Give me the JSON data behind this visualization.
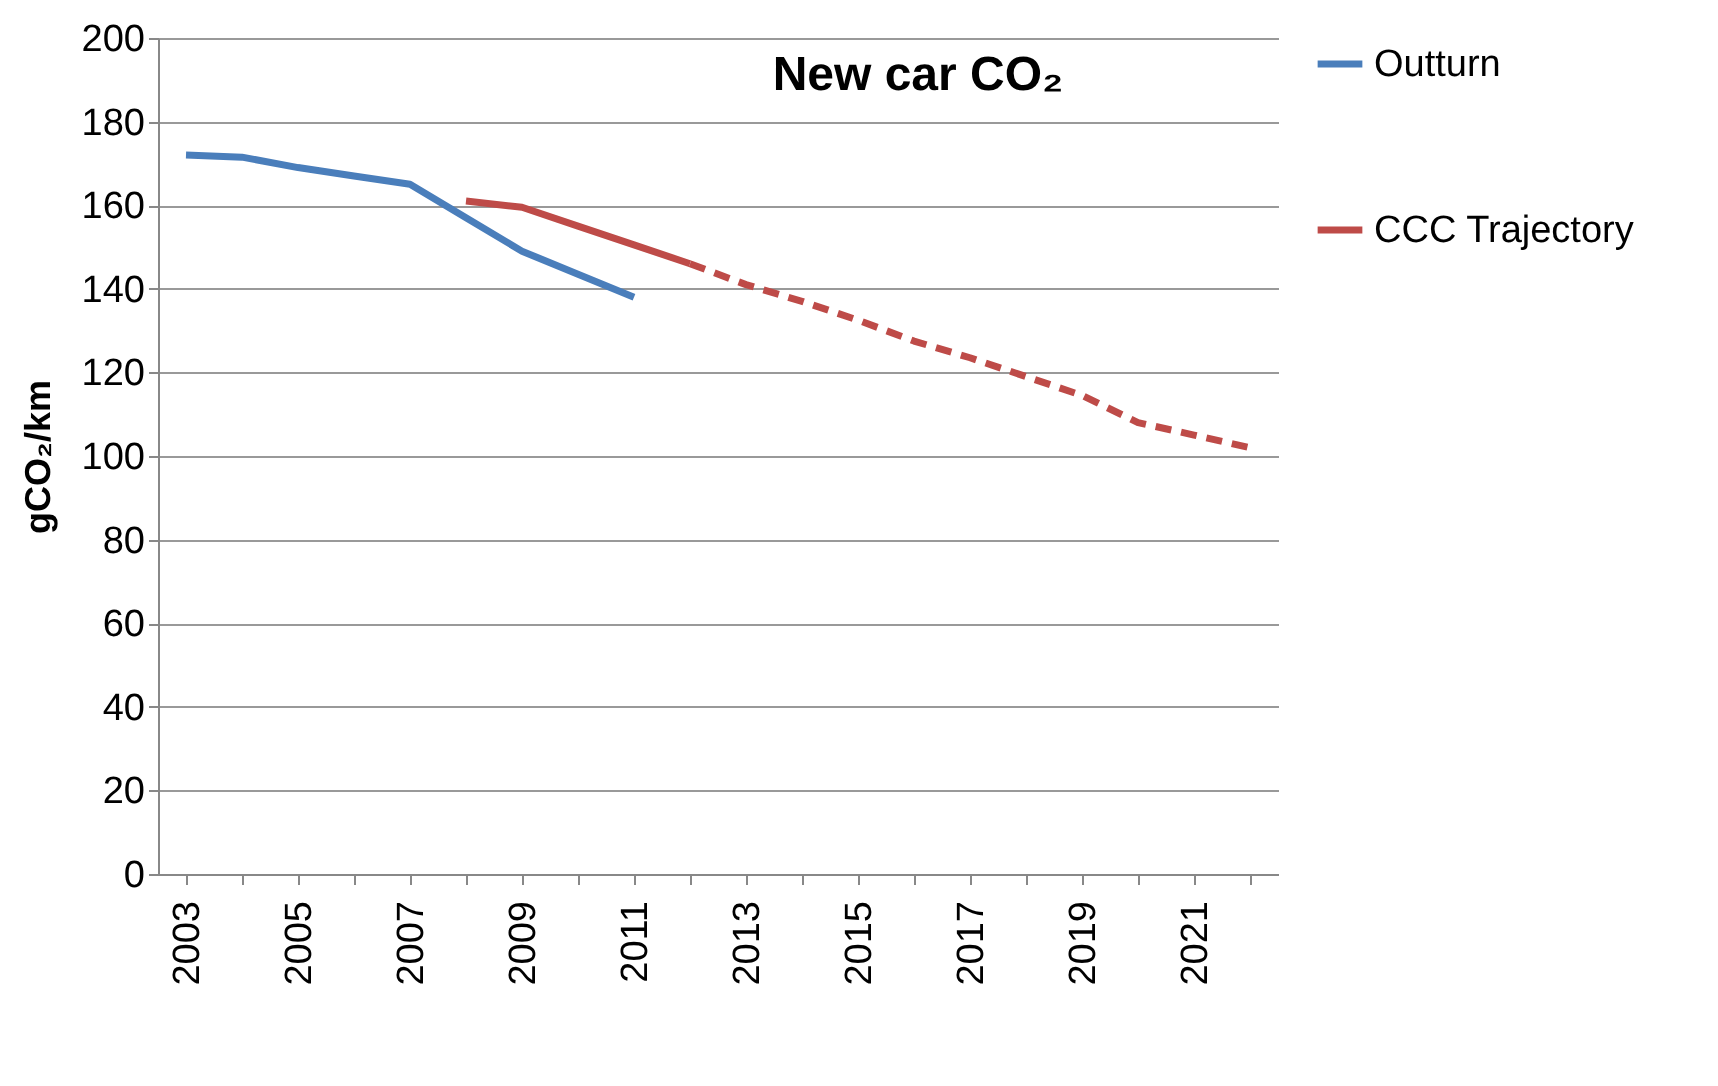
{
  "chart_data": {
    "type": "line",
    "title": "New car CO₂",
    "ylabel": "gCO₂/km",
    "categories": [
      "2003",
      null,
      "2005",
      null,
      "2007",
      null,
      "2009",
      null,
      "2011",
      null,
      "2013",
      null,
      "2015",
      null,
      "2017",
      null,
      "2019",
      null,
      "2021",
      null
    ],
    "series": [
      {
        "name": "Outturn",
        "color": "#4a7ebb",
        "values": [
          172,
          171.5,
          169,
          167,
          165,
          157,
          149,
          143.5,
          138,
          null,
          null,
          null,
          null,
          null,
          null,
          null,
          null,
          null,
          null,
          null
        ]
      },
      {
        "name": "CCC Trajectory",
        "color": "#be4b48",
        "values": [
          null,
          null,
          null,
          null,
          null,
          161,
          159.5,
          155,
          150.5,
          146,
          null,
          null,
          null,
          null,
          null,
          null,
          null,
          null,
          null,
          null
        ]
      },
      {
        "color": "#be4b48",
        "line_style": "dashed",
        "values": [
          null,
          null,
          null,
          null,
          null,
          null,
          null,
          null,
          null,
          146,
          141,
          137,
          132.5,
          127.5,
          123.5,
          119,
          114.5,
          108,
          105,
          102
        ]
      }
    ],
    "ylim": [
      0,
      200
    ],
    "yticks": [
      0,
      20,
      40,
      60,
      80,
      100,
      120,
      140,
      160,
      180,
      200
    ],
    "grid": "y",
    "legend": "right",
    "line_style": "solid"
  }
}
